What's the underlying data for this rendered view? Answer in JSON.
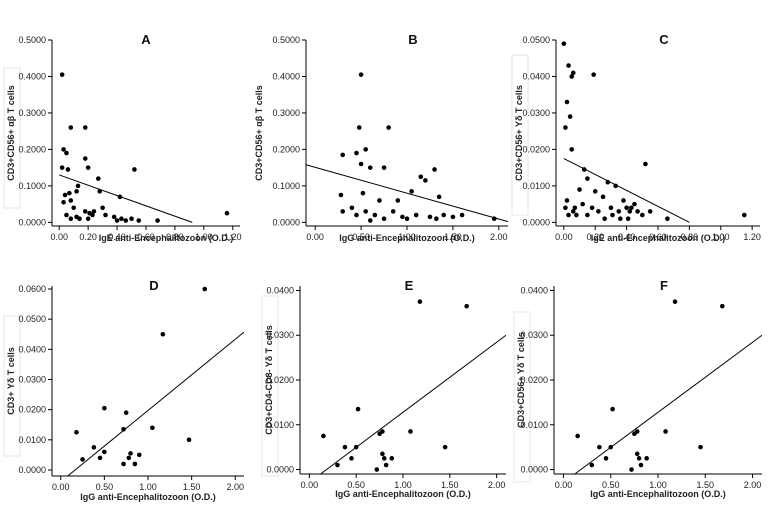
{
  "chart_data": [
    {
      "type": "scatter",
      "title": "A",
      "xlabel": "IgE anti-Encephalitozoon (O.D.)",
      "ylabel": "CD3+CD56+ αβ T cells",
      "xlim": [
        -0.05,
        1.25
      ],
      "ylim": [
        -0.01,
        0.5
      ],
      "xticks": [
        "0.00",
        "0.20",
        "0.40",
        "0.60",
        "0.80",
        "1.00",
        "1.20"
      ],
      "yticks": [
        "0.0000",
        "0.1000",
        "0.2000",
        "0.3000",
        "0.4000",
        "0.5000"
      ],
      "fit_line": {
        "x": [
          0.0,
          0.92
        ],
        "y": [
          0.13,
          0.0
        ]
      },
      "points": [
        [
          0.02,
          0.405
        ],
        [
          0.08,
          0.26
        ],
        [
          0.18,
          0.26
        ],
        [
          0.03,
          0.2
        ],
        [
          0.05,
          0.19
        ],
        [
          0.02,
          0.15
        ],
        [
          0.06,
          0.145
        ],
        [
          0.18,
          0.175
        ],
        [
          0.2,
          0.15
        ],
        [
          0.13,
          0.1
        ],
        [
          0.27,
          0.12
        ],
        [
          0.52,
          0.145
        ],
        [
          0.04,
          0.075
        ],
        [
          0.07,
          0.08
        ],
        [
          0.12,
          0.085
        ],
        [
          0.28,
          0.085
        ],
        [
          0.03,
          0.055
        ],
        [
          0.08,
          0.06
        ],
        [
          0.42,
          0.07
        ],
        [
          0.1,
          0.04
        ],
        [
          0.18,
          0.03
        ],
        [
          0.21,
          0.025
        ],
        [
          0.24,
          0.03
        ],
        [
          0.32,
          0.02
        ],
        [
          0.05,
          0.02
        ],
        [
          0.12,
          0.015
        ],
        [
          0.14,
          0.01
        ],
        [
          0.2,
          0.01
        ],
        [
          0.38,
          0.015
        ],
        [
          0.43,
          0.01
        ],
        [
          0.46,
          0.005
        ],
        [
          0.5,
          0.01
        ],
        [
          0.55,
          0.005
        ],
        [
          0.68,
          0.005
        ],
        [
          1.16,
          0.025
        ],
        [
          0.4,
          0.005
        ],
        [
          0.08,
          0.01
        ],
        [
          0.23,
          0.02
        ],
        [
          0.3,
          0.04
        ]
      ]
    },
    {
      "type": "scatter",
      "title": "B",
      "xlabel": "IgG anti-Encephalitozoon (O.D.)",
      "ylabel": "CD3+CD56+ αβ T cells",
      "xlim": [
        -0.1,
        2.1
      ],
      "ylim": [
        -0.01,
        0.5
      ],
      "xticks": [
        "0.00",
        "0.50",
        "1.00",
        "1.50",
        "2.00"
      ],
      "yticks": [
        "0.0000",
        "0.1000",
        "0.2000",
        "0.3000",
        "0.4000",
        "0.5000"
      ],
      "fit_line": {
        "x": [
          -0.1,
          2.1
        ],
        "y": [
          0.158,
          0.002
        ]
      },
      "points": [
        [
          0.5,
          0.405
        ],
        [
          0.48,
          0.26
        ],
        [
          0.8,
          0.26
        ],
        [
          0.3,
          0.185
        ],
        [
          0.45,
          0.19
        ],
        [
          0.55,
          0.2
        ],
        [
          0.5,
          0.16
        ],
        [
          0.6,
          0.15
        ],
        [
          1.3,
          0.145
        ],
        [
          0.75,
          0.15
        ],
        [
          1.15,
          0.125
        ],
        [
          1.2,
          0.115
        ],
        [
          1.35,
          0.07
        ],
        [
          1.05,
          0.085
        ],
        [
          0.28,
          0.075
        ],
        [
          0.52,
          0.08
        ],
        [
          0.7,
          0.06
        ],
        [
          0.9,
          0.06
        ],
        [
          0.4,
          0.04
        ],
        [
          0.3,
          0.03
        ],
        [
          0.45,
          0.02
        ],
        [
          0.55,
          0.03
        ],
        [
          0.65,
          0.02
        ],
        [
          0.75,
          0.01
        ],
        [
          0.85,
          0.03
        ],
        [
          1.0,
          0.01
        ],
        [
          1.1,
          0.02
        ],
        [
          1.25,
          0.015
        ],
        [
          1.32,
          0.01
        ],
        [
          1.5,
          0.015
        ],
        [
          1.6,
          0.02
        ],
        [
          1.95,
          0.01
        ],
        [
          0.95,
          0.015
        ],
        [
          1.4,
          0.02
        ],
        [
          0.6,
          0.005
        ]
      ]
    },
    {
      "type": "scatter",
      "title": "C",
      "xlabel": "IgE anti-Encephalitozoon (O.D.)",
      "ylabel": "CD3+CD56+ Yδ T cells",
      "xlim": [
        -0.05,
        1.25
      ],
      "ylim": [
        -0.001,
        0.05
      ],
      "xticks": [
        "0.00",
        "0.20",
        "0.40",
        "0.60",
        "0.80",
        "1.00",
        "1.20"
      ],
      "yticks": [
        "0.0000",
        "0.0100",
        "0.0200",
        "0.0300",
        "0.0400",
        "0.0500"
      ],
      "fit_line": {
        "x": [
          0.0,
          0.8
        ],
        "y": [
          0.0175,
          0.0
        ]
      },
      "points": [
        [
          0.0,
          0.049
        ],
        [
          0.03,
          0.043
        ],
        [
          0.05,
          0.04
        ],
        [
          0.06,
          0.041
        ],
        [
          0.19,
          0.0405
        ],
        [
          0.02,
          0.033
        ],
        [
          0.04,
          0.029
        ],
        [
          0.01,
          0.026
        ],
        [
          0.05,
          0.02
        ],
        [
          0.52,
          0.016
        ],
        [
          0.13,
          0.0145
        ],
        [
          0.15,
          0.012
        ],
        [
          0.28,
          0.011
        ],
        [
          0.33,
          0.01
        ],
        [
          0.1,
          0.009
        ],
        [
          0.2,
          0.0085
        ],
        [
          0.25,
          0.007
        ],
        [
          0.38,
          0.006
        ],
        [
          0.45,
          0.005
        ],
        [
          0.02,
          0.006
        ],
        [
          0.07,
          0.004
        ],
        [
          0.12,
          0.005
        ],
        [
          0.18,
          0.004
        ],
        [
          0.22,
          0.003
        ],
        [
          0.3,
          0.004
        ],
        [
          0.35,
          0.003
        ],
        [
          0.4,
          0.004
        ],
        [
          0.42,
          0.003
        ],
        [
          0.5,
          0.002
        ],
        [
          0.55,
          0.003
        ],
        [
          0.03,
          0.002
        ],
        [
          0.08,
          0.002
        ],
        [
          0.15,
          0.002
        ],
        [
          0.26,
          0.001
        ],
        [
          0.31,
          0.002
        ],
        [
          0.41,
          0.001
        ],
        [
          0.43,
          0.004
        ],
        [
          0.47,
          0.003
        ],
        [
          0.01,
          0.004
        ],
        [
          0.66,
          0.001
        ],
        [
          1.15,
          0.002
        ],
        [
          0.06,
          0.003
        ],
        [
          0.36,
          0.001
        ]
      ]
    },
    {
      "type": "scatter",
      "title": "D",
      "xlabel": "IgG anti-Encephalitozoon (O.D.)",
      "ylabel": "CD3+ Yδ T cells",
      "xlim": [
        -0.1,
        2.1
      ],
      "ylim": [
        -0.002,
        0.061
      ],
      "xticks": [
        "0.00",
        "0.50",
        "1.00",
        "1.50",
        "2.00"
      ],
      "yticks": [
        "0.0000",
        "0.0100",
        "0.0200",
        "0.0300",
        "0.0400",
        "0.0500",
        "0.0600"
      ],
      "fit_line": {
        "x": [
          0.08,
          2.1
        ],
        "y": [
          -0.002,
          0.0457
        ]
      },
      "points": [
        [
          1.65,
          0.06
        ],
        [
          1.17,
          0.045
        ],
        [
          0.5,
          0.0205
        ],
        [
          0.75,
          0.019
        ],
        [
          1.05,
          0.014
        ],
        [
          1.47,
          0.01
        ],
        [
          0.72,
          0.0135
        ],
        [
          0.18,
          0.0125
        ],
        [
          0.38,
          0.0075
        ],
        [
          0.25,
          0.0035
        ],
        [
          0.45,
          0.004
        ],
        [
          0.5,
          0.006
        ],
        [
          0.72,
          0.002
        ],
        [
          0.78,
          0.004
        ],
        [
          0.85,
          0.002
        ],
        [
          0.9,
          0.005
        ],
        [
          0.8,
          0.0055
        ]
      ]
    },
    {
      "type": "scatter",
      "title": "E",
      "xlabel": "IgG anti-Encephalitozoon (O.D.)",
      "ylabel": "CD3+CD4-CD8- Yδ T cells",
      "xlim": [
        -0.1,
        2.1
      ],
      "ylim": [
        -0.001,
        0.041
      ],
      "xticks": [
        "0.00",
        "0.50",
        "1.00",
        "1.50",
        "2.00"
      ],
      "yticks": [
        "0.0000",
        "0.0100",
        "0.0200",
        "0.0300",
        "0.0400"
      ],
      "fit_line": {
        "x": [
          0.12,
          2.1
        ],
        "y": [
          -0.001,
          0.03
        ]
      },
      "points": [
        [
          1.18,
          0.0375
        ],
        [
          1.68,
          0.0365
        ],
        [
          0.52,
          0.0135
        ],
        [
          0.78,
          0.0085
        ],
        [
          0.75,
          0.008
        ],
        [
          1.08,
          0.0085
        ],
        [
          0.15,
          0.0075
        ],
        [
          1.45,
          0.005
        ],
        [
          0.38,
          0.005
        ],
        [
          0.5,
          0.005
        ],
        [
          0.3,
          0.001
        ],
        [
          0.45,
          0.0025
        ],
        [
          0.72,
          0.0
        ],
        [
          0.8,
          0.0025
        ],
        [
          0.88,
          0.0025
        ],
        [
          0.82,
          0.001
        ],
        [
          0.78,
          0.0035
        ]
      ]
    },
    {
      "type": "scatter",
      "title": "F",
      "xlabel": "IgG anti-Encephalitozoon (O.D.)",
      "ylabel": "CD3+CD56+ Yδ T cells",
      "xlim": [
        -0.1,
        2.1
      ],
      "ylim": [
        -0.001,
        0.041
      ],
      "xticks": [
        "0.00",
        "0.50",
        "1.00",
        "1.50",
        "2.00"
      ],
      "yticks": [
        "0.0000",
        "0.0100",
        "0.0200",
        "0.0300",
        "0.0400"
      ],
      "fit_line": {
        "x": [
          0.12,
          2.1
        ],
        "y": [
          -0.001,
          0.03
        ]
      },
      "points": [
        [
          1.18,
          0.0375
        ],
        [
          1.68,
          0.0365
        ],
        [
          0.52,
          0.0135
        ],
        [
          0.78,
          0.0085
        ],
        [
          0.75,
          0.008
        ],
        [
          1.08,
          0.0085
        ],
        [
          0.15,
          0.0075
        ],
        [
          1.45,
          0.005
        ],
        [
          0.38,
          0.005
        ],
        [
          0.5,
          0.005
        ],
        [
          0.3,
          0.001
        ],
        [
          0.45,
          0.0025
        ],
        [
          0.72,
          0.0
        ],
        [
          0.8,
          0.0025
        ],
        [
          0.88,
          0.0025
        ],
        [
          0.82,
          0.001
        ],
        [
          0.78,
          0.0035
        ]
      ]
    }
  ]
}
